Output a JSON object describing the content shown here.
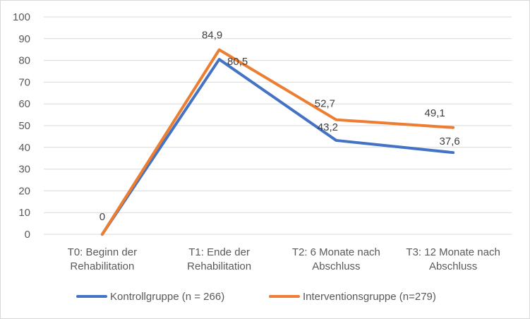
{
  "chart_data": {
    "type": "line",
    "title": "",
    "xlabel": "",
    "ylabel": "",
    "ylim": [
      0,
      100
    ],
    "yticks": [
      0,
      10,
      20,
      30,
      40,
      50,
      60,
      70,
      80,
      90,
      100
    ],
    "grid": true,
    "legend_position": "bottom",
    "categories": [
      [
        "T0: Beginn der",
        "Rehabilitation"
      ],
      [
        "T1: Ende der",
        "Rehabilitation"
      ],
      [
        "T2: 6 Monate nach",
        "Abschluss"
      ],
      [
        "T3: 12 Monate nach",
        "Abschluss"
      ]
    ],
    "series": [
      {
        "name": "Kontrollgruppe (n = 266)",
        "color": "#4472c4",
        "values": [
          0,
          80.5,
          43.2,
          37.6
        ],
        "labels": [
          "0",
          "80,5",
          "43,2",
          "37,6"
        ]
      },
      {
        "name": "Interventionsgruppe (n=279)",
        "color": "#ed7d31",
        "values": [
          0,
          84.9,
          52.7,
          49.1
        ],
        "labels": [
          "",
          "84,9",
          "52,7",
          "49,1"
        ]
      }
    ]
  }
}
